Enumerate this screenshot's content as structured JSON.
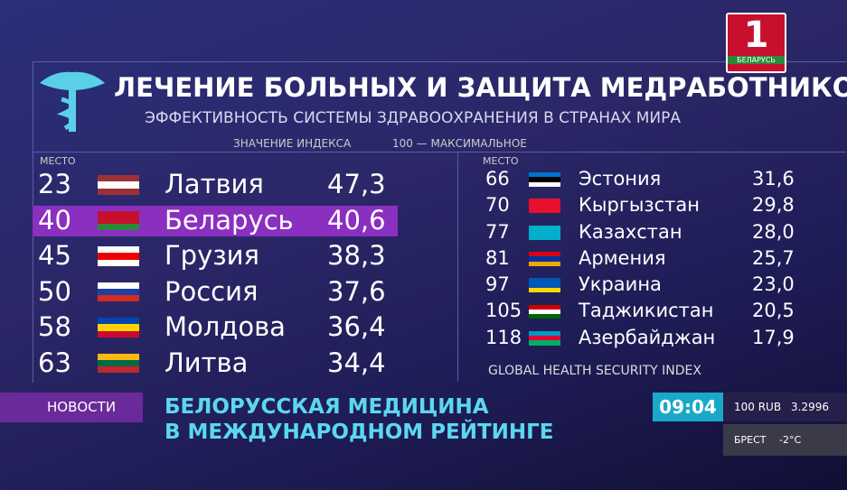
{
  "logo": {
    "number": "1",
    "country": "БЕЛАРУСЬ"
  },
  "header": {
    "title": "ЛЕЧЕНИЕ БОЛЬНЫХ И ЗАЩИТА МЕДРАБОТНИКОВ",
    "subtitle": "ЭФФЕКТИВНОСТЬ СИСТЕМЫ ЗДРАВООХРАНЕНИЯ В СТРАНАХ МИРА",
    "index_note": "ЗНАЧЕНИЕ ИНДЕКСА",
    "max_note": "100 — МАКСИМАЛЬНОЕ"
  },
  "left": {
    "rank_header": "МЕСТО",
    "rows": [
      {
        "rank": 23,
        "country": "Латвия",
        "score": {
          "value": 47.3,
          "label": "47,3"
        }
      },
      {
        "rank": 40,
        "country": "Беларусь",
        "score": {
          "value": 40.6,
          "label": "40,6"
        }
      },
      {
        "rank": 45,
        "country": "Грузия",
        "score": {
          "value": 38.3,
          "label": "38,3"
        }
      },
      {
        "rank": 50,
        "country": "Россия",
        "score": {
          "value": 37.6,
          "label": "37,6"
        }
      },
      {
        "rank": 58,
        "country": "Молдова",
        "score": {
          "value": 36.4,
          "label": "36,4"
        }
      },
      {
        "rank": 63,
        "country": "Литва",
        "score": {
          "value": 34.4,
          "label": "34,4"
        }
      }
    ]
  },
  "right": {
    "rank_header": "МЕСТО",
    "rows": [
      {
        "rank": 66,
        "country": "Эстония",
        "score": {
          "value": 31.6,
          "label": "31,6"
        }
      },
      {
        "rank": 70,
        "country": "Кыргызстан",
        "score": {
          "value": 29.8,
          "label": "29,8"
        }
      },
      {
        "rank": 77,
        "country": "Казахстан",
        "score": {
          "value": 28.0,
          "label": "28,0"
        }
      },
      {
        "rank": 81,
        "country": "Армения",
        "score": {
          "value": 25.7,
          "label": "25,7"
        }
      },
      {
        "rank": 97,
        "country": "Украина",
        "score": {
          "value": 23.0,
          "label": "23,0"
        }
      },
      {
        "rank": 105,
        "country": "Таджикистан",
        "score": {
          "value": 20.5,
          "label": "20,5"
        }
      },
      {
        "rank": 118,
        "country": "Азербайджан",
        "score": {
          "value": 17.9,
          "label": "17,9"
        }
      }
    ]
  },
  "source": "GLOBAL HEALTH SECURITY INDEX",
  "ticker": {
    "label": "НОВОСТИ",
    "headline": [
      "БЕЛОРУССКАЯ МЕДИЦИНА",
      "В МЕЖДУНАРОДНОМ РЕЙТИНГЕ"
    ],
    "time": "09:04",
    "currency": "100 RUB",
    "rate": "3.2996",
    "city": "БРЕСТ",
    "temperature": "-2°C"
  }
}
